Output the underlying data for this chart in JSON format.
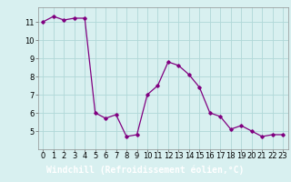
{
  "x": [
    0,
    1,
    2,
    3,
    4,
    5,
    6,
    7,
    8,
    9,
    10,
    11,
    12,
    13,
    14,
    15,
    16,
    17,
    18,
    19,
    20,
    21,
    22,
    23
  ],
  "y": [
    11.0,
    11.3,
    11.1,
    11.2,
    11.2,
    6.0,
    5.7,
    5.9,
    4.7,
    4.8,
    7.0,
    7.5,
    8.8,
    8.6,
    8.1,
    7.4,
    6.0,
    5.8,
    5.1,
    5.3,
    5.0,
    4.7,
    4.8,
    4.8
  ],
  "line_color": "#800080",
  "marker": "D",
  "marker_size": 1.8,
  "line_width": 0.9,
  "xlabel": "Windchill (Refroidissement éolien,°C)",
  "xlabel_fontsize": 7.0,
  "ylim": [
    4.0,
    11.8
  ],
  "yticks": [
    5,
    6,
    7,
    8,
    9,
    10,
    11
  ],
  "xticks": [
    0,
    1,
    2,
    3,
    4,
    5,
    6,
    7,
    8,
    9,
    10,
    11,
    12,
    13,
    14,
    15,
    16,
    17,
    18,
    19,
    20,
    21,
    22,
    23
  ],
  "grid_color": "#b0d8d8",
  "background_color": "#d8f0f0",
  "tick_fontsize": 6.0,
  "xlabel_bg_color": "#8040a0",
  "xlabel_text_color": "#ffffff"
}
